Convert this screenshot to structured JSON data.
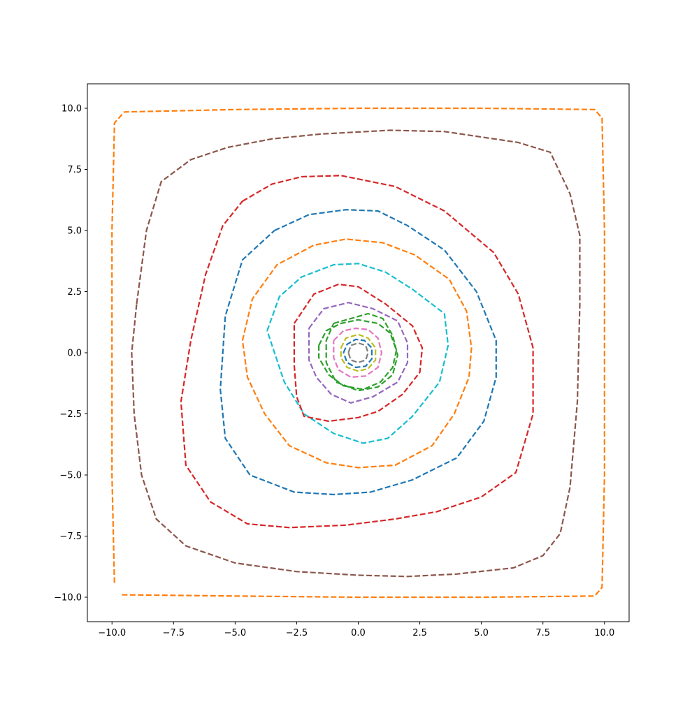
{
  "chart_data": {
    "type": "line",
    "title": "",
    "xlabel": "",
    "ylabel": "",
    "xlim": [
      -11,
      11
    ],
    "ylim": [
      -11,
      11
    ],
    "grid": false,
    "legend": "none",
    "line_style": "dashed",
    "xticks": [
      -10.0,
      -7.5,
      -5.0,
      -2.5,
      0.0,
      2.5,
      5.0,
      7.5,
      10.0
    ],
    "yticks": [
      -10.0,
      -7.5,
      -5.0,
      -2.5,
      0.0,
      2.5,
      5.0,
      7.5,
      10.0
    ],
    "xtick_labels": [
      "−10.0",
      "−7.5",
      "−5.0",
      "−2.5",
      "0.0",
      "2.5",
      "5.0",
      "7.5",
      "10.0"
    ],
    "ytick_labels": [
      "−10.0",
      "−7.5",
      "−5.0",
      "−2.5",
      "0.0",
      "2.5",
      "5.0",
      "7.5",
      "10.0"
    ],
    "series": [
      {
        "color": "#ff7f0e",
        "points": [
          [
            -9.6,
            -9.9
          ],
          [
            -5,
            -9.95
          ],
          [
            0,
            -10
          ],
          [
            5,
            -10
          ],
          [
            9.6,
            -9.95
          ],
          [
            9.9,
            -9.6
          ],
          [
            10,
            -5
          ],
          [
            10,
            0
          ],
          [
            10,
            5
          ],
          [
            9.9,
            9.6
          ],
          [
            9.6,
            9.95
          ],
          [
            5,
            10
          ],
          [
            0,
            10
          ],
          [
            -5,
            9.95
          ],
          [
            -9.5,
            9.85
          ],
          [
            -9.9,
            9.4
          ],
          [
            -10,
            5
          ],
          [
            -10,
            0
          ],
          [
            -10,
            -5
          ],
          [
            -9.9,
            -9.5
          ]
        ]
      },
      {
        "color": "#8c564b",
        "points": [
          [
            -9,
            2
          ],
          [
            -8.6,
            5
          ],
          [
            -8,
            7
          ],
          [
            -6.8,
            7.9
          ],
          [
            -5.3,
            8.4
          ],
          [
            -3.5,
            8.75
          ],
          [
            -1.5,
            8.95
          ],
          [
            1.3,
            9.1
          ],
          [
            3.5,
            9.05
          ],
          [
            6.5,
            8.6
          ],
          [
            7.8,
            8.2
          ],
          [
            8.6,
            6.5
          ],
          [
            9,
            4.8
          ],
          [
            9,
            2
          ],
          [
            8.9,
            -2
          ],
          [
            8.6,
            -5.5
          ],
          [
            8.2,
            -7.4
          ],
          [
            7.5,
            -8.3
          ],
          [
            6.3,
            -8.8
          ],
          [
            4,
            -9.05
          ],
          [
            2,
            -9.15
          ],
          [
            0,
            -9.1
          ],
          [
            -2.5,
            -8.95
          ],
          [
            -5,
            -8.6
          ],
          [
            -7,
            -7.9
          ],
          [
            -8.2,
            -6.8
          ],
          [
            -8.8,
            -5
          ],
          [
            -9.1,
            -2.5
          ],
          [
            -9.2,
            0
          ],
          [
            -9,
            2
          ]
        ]
      },
      {
        "color": "#d62728",
        "points": [
          [
            -4.7,
            6.2
          ],
          [
            -3.5,
            6.9
          ],
          [
            -2.3,
            7.2
          ],
          [
            -0.7,
            7.25
          ],
          [
            1.5,
            6.8
          ],
          [
            3.5,
            5.8
          ],
          [
            5.5,
            4.1
          ],
          [
            6.5,
            2.4
          ],
          [
            7.1,
            0.2
          ],
          [
            7.1,
            -2.5
          ],
          [
            6.4,
            -4.9
          ],
          [
            5,
            -5.9
          ],
          [
            3.2,
            -6.5
          ],
          [
            1.5,
            -6.8
          ],
          [
            -0.5,
            -7.05
          ],
          [
            -2.8,
            -7.15
          ],
          [
            -4.5,
            -7
          ],
          [
            -6,
            -6.1
          ],
          [
            -7,
            -4.6
          ],
          [
            -7.2,
            -2
          ],
          [
            -6.8,
            0.5
          ],
          [
            -6.2,
            3.2
          ],
          [
            -5.5,
            5.2
          ],
          [
            -4.7,
            6.2
          ]
        ]
      },
      {
        "color": "#1f77b4",
        "points": [
          [
            -3.4,
            5
          ],
          [
            -2,
            5.65
          ],
          [
            -0.5,
            5.85
          ],
          [
            0.8,
            5.8
          ],
          [
            2,
            5.2
          ],
          [
            3.5,
            4.2
          ],
          [
            4.8,
            2.5
          ],
          [
            5.6,
            0.5
          ],
          [
            5.6,
            -1
          ],
          [
            5.1,
            -2.8
          ],
          [
            4,
            -4.3
          ],
          [
            2.2,
            -5.2
          ],
          [
            0.5,
            -5.7
          ],
          [
            -1,
            -5.8
          ],
          [
            -2.6,
            -5.7
          ],
          [
            -4.4,
            -5
          ],
          [
            -5.4,
            -3.5
          ],
          [
            -5.6,
            -1.5
          ],
          [
            -5.4,
            1.5
          ],
          [
            -4.7,
            3.8
          ],
          [
            -3.4,
            5
          ]
        ]
      },
      {
        "color": "#ff7f0e",
        "points": [
          [
            -4.7,
            0.5
          ],
          [
            -4.3,
            2.2
          ],
          [
            -3.3,
            3.6
          ],
          [
            -1.8,
            4.4
          ],
          [
            -0.5,
            4.65
          ],
          [
            1,
            4.5
          ],
          [
            2.3,
            4
          ],
          [
            3.7,
            3
          ],
          [
            4.4,
            1.7
          ],
          [
            4.6,
            0.2
          ],
          [
            4.5,
            -1
          ],
          [
            3.9,
            -2.5
          ],
          [
            3,
            -3.8
          ],
          [
            1.5,
            -4.6
          ],
          [
            0,
            -4.7
          ],
          [
            -1.3,
            -4.5
          ],
          [
            -2.8,
            -3.8
          ],
          [
            -3.8,
            -2.5
          ],
          [
            -4.5,
            -1
          ],
          [
            -4.7,
            0.5
          ]
        ]
      },
      {
        "color": "#17becf",
        "points": [
          [
            -3.7,
            0.9
          ],
          [
            -3.2,
            2.3
          ],
          [
            -2.3,
            3.1
          ],
          [
            -1,
            3.6
          ],
          [
            0,
            3.65
          ],
          [
            1.1,
            3.3
          ],
          [
            2.2,
            2.6
          ],
          [
            3.5,
            1.6
          ],
          [
            3.65,
            0.3
          ],
          [
            3.3,
            -1.2
          ],
          [
            2.2,
            -2.6
          ],
          [
            1.2,
            -3.5
          ],
          [
            0.2,
            -3.7
          ],
          [
            -1,
            -3.3
          ],
          [
            -2.2,
            -2.5
          ],
          [
            -3,
            -1.2
          ],
          [
            -3.7,
            0.9
          ]
        ]
      },
      {
        "color": "#d62728",
        "points": [
          [
            -2.6,
            1.2
          ],
          [
            -1.8,
            2.4
          ],
          [
            -0.8,
            2.8
          ],
          [
            0,
            2.7
          ],
          [
            1.1,
            2
          ],
          [
            2.2,
            1.1
          ],
          [
            2.6,
            0.2
          ],
          [
            2.5,
            -0.8
          ],
          [
            1.8,
            -1.7
          ],
          [
            0.8,
            -2.4
          ],
          [
            0,
            -2.65
          ],
          [
            -1.2,
            -2.8
          ],
          [
            -2.2,
            -2.6
          ],
          [
            -2.5,
            -1.8
          ],
          [
            -2.6,
            -0.5
          ],
          [
            -2.6,
            1.2
          ]
        ]
      },
      {
        "color": "#9467bd",
        "points": [
          [
            -2,
            1
          ],
          [
            -1.4,
            1.8
          ],
          [
            -0.4,
            2.05
          ],
          [
            0.6,
            1.8
          ],
          [
            1.6,
            1.3
          ],
          [
            2,
            0.4
          ],
          [
            2,
            -0.4
          ],
          [
            1.6,
            -1.2
          ],
          [
            0.6,
            -1.8
          ],
          [
            -0.3,
            -2.05
          ],
          [
            -1.1,
            -1.7
          ],
          [
            -1.7,
            -1
          ],
          [
            -2,
            -0.3
          ],
          [
            -2,
            1
          ]
        ]
      },
      {
        "color": "#2ca02c",
        "points": [
          [
            -1.6,
            0.3
          ],
          [
            -1.3,
            0.9
          ],
          [
            -0.7,
            1.2
          ],
          [
            0,
            1.35
          ],
          [
            0.8,
            1.2
          ],
          [
            1.3,
            0.8
          ],
          [
            1.55,
            0.1
          ],
          [
            1.4,
            -0.6
          ],
          [
            0.9,
            -1.2
          ],
          [
            0.2,
            -1.5
          ],
          [
            -0.6,
            -1.35
          ],
          [
            -1.2,
            -0.9
          ],
          [
            -1.6,
            -0.2
          ],
          [
            -1.6,
            0.3
          ]
        ]
      },
      {
        "color": "#2ca02c",
        "points": [
          [
            -1,
            1.2
          ],
          [
            -0.3,
            1.4
          ],
          [
            0.4,
            1.6
          ],
          [
            1,
            1.4
          ],
          [
            1.4,
            0.7
          ],
          [
            1.6,
            -0.1
          ],
          [
            1.4,
            -0.9
          ],
          [
            0.8,
            -1.4
          ],
          [
            0,
            -1.55
          ],
          [
            -0.9,
            -1.2
          ],
          [
            -1.3,
            -0.4
          ],
          [
            -1.3,
            0.5
          ],
          [
            -1,
            1.2
          ]
        ]
      },
      {
        "color": "#e377c2",
        "points": [
          [
            -1,
            0.5
          ],
          [
            -0.6,
            0.9
          ],
          [
            -0.1,
            1
          ],
          [
            0.4,
            0.95
          ],
          [
            0.8,
            0.6
          ],
          [
            0.95,
            0
          ],
          [
            0.8,
            -0.6
          ],
          [
            0.3,
            -0.95
          ],
          [
            -0.3,
            -1
          ],
          [
            -0.8,
            -0.7
          ],
          [
            -1,
            -0.2
          ],
          [
            -1,
            0.5
          ]
        ]
      },
      {
        "color": "#bcbd22",
        "points": [
          [
            -0.7,
            0.2
          ],
          [
            -0.5,
            0.6
          ],
          [
            0,
            0.75
          ],
          [
            0.4,
            0.6
          ],
          [
            0.7,
            0.2
          ],
          [
            0.7,
            -0.3
          ],
          [
            0.4,
            -0.65
          ],
          [
            0,
            -0.75
          ],
          [
            -0.45,
            -0.6
          ],
          [
            -0.7,
            -0.2
          ],
          [
            -0.7,
            0.2
          ]
        ]
      },
      {
        "color": "#1f77b4",
        "points": [
          [
            -0.6,
            0
          ],
          [
            -0.45,
            0.35
          ],
          [
            -0.1,
            0.55
          ],
          [
            0.25,
            0.5
          ],
          [
            0.55,
            0.2
          ],
          [
            0.55,
            -0.25
          ],
          [
            0.3,
            -0.55
          ],
          [
            -0.1,
            -0.6
          ],
          [
            -0.45,
            -0.4
          ],
          [
            -0.6,
            0
          ]
        ]
      },
      {
        "color": "#7f7f7f",
        "points": [
          [
            -0.4,
            0
          ],
          [
            -0.3,
            0.3
          ],
          [
            0,
            0.4
          ],
          [
            0.3,
            0.3
          ],
          [
            0.4,
            0
          ],
          [
            0.3,
            -0.3
          ],
          [
            0,
            -0.4
          ],
          [
            -0.3,
            -0.3
          ],
          [
            -0.4,
            0
          ]
        ]
      }
    ]
  }
}
